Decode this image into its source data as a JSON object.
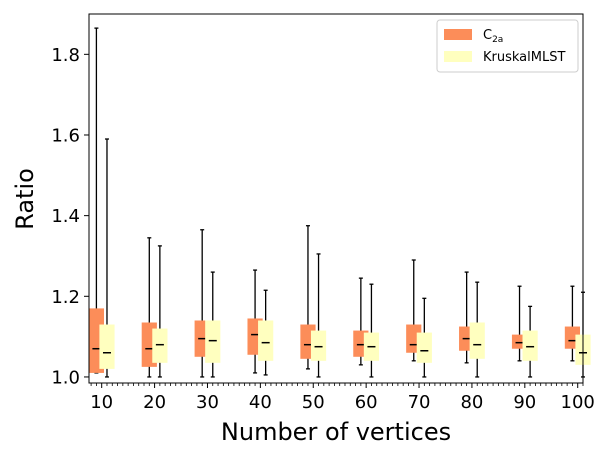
{
  "chart_data": {
    "type": "boxplot",
    "title": "",
    "xlabel": "Number of vertices",
    "ylabel": "Ratio",
    "ylim": [
      0.985,
      1.9
    ],
    "yticks": [
      1.0,
      1.2,
      1.4,
      1.6,
      1.8
    ],
    "ytick_labels": [
      "1.0",
      "1.2",
      "1.4",
      "1.6",
      "1.8"
    ],
    "xlim": [
      7.6,
      101
    ],
    "minor_xticks_step": 1,
    "categories": [
      "10",
      "20",
      "30",
      "40",
      "50",
      "60",
      "70",
      "80",
      "90",
      "100"
    ],
    "x": [
      10,
      20,
      30,
      40,
      50,
      60,
      70,
      80,
      90,
      100
    ],
    "legend": {
      "position": "top-right"
    },
    "series": [
      {
        "name": "C2a",
        "name_main": "C",
        "name_sub": "2a",
        "color": "#fc8d59",
        "offset": -1,
        "boxes": [
          {
            "min": 1.01,
            "q1": 1.01,
            "median": 1.07,
            "q3": 1.17,
            "max": 1.865
          },
          {
            "min": 1.0,
            "q1": 1.025,
            "median": 1.07,
            "q3": 1.135,
            "max": 1.345
          },
          {
            "min": 1.0,
            "q1": 1.05,
            "median": 1.095,
            "q3": 1.14,
            "max": 1.365
          },
          {
            "min": 1.01,
            "q1": 1.055,
            "median": 1.105,
            "q3": 1.145,
            "max": 1.265
          },
          {
            "min": 1.02,
            "q1": 1.045,
            "median": 1.08,
            "q3": 1.13,
            "max": 1.375
          },
          {
            "min": 1.03,
            "q1": 1.05,
            "median": 1.08,
            "q3": 1.115,
            "max": 1.245
          },
          {
            "min": 1.04,
            "q1": 1.06,
            "median": 1.08,
            "q3": 1.13,
            "max": 1.29
          },
          {
            "min": 1.035,
            "q1": 1.065,
            "median": 1.095,
            "q3": 1.125,
            "max": 1.26
          },
          {
            "min": 1.04,
            "q1": 1.07,
            "median": 1.085,
            "q3": 1.105,
            "max": 1.225
          },
          {
            "min": 1.04,
            "q1": 1.07,
            "median": 1.09,
            "q3": 1.125,
            "max": 1.225
          }
        ]
      },
      {
        "name": "KruskalMLST",
        "color": "#ffffbf",
        "offset": 1,
        "boxes": [
          {
            "min": 1.0,
            "q1": 1.02,
            "median": 1.06,
            "q3": 1.13,
            "max": 1.59
          },
          {
            "min": 1.0,
            "q1": 1.035,
            "median": 1.08,
            "q3": 1.12,
            "max": 1.325
          },
          {
            "min": 1.0,
            "q1": 1.035,
            "median": 1.09,
            "q3": 1.14,
            "max": 1.26
          },
          {
            "min": 1.005,
            "q1": 1.04,
            "median": 1.085,
            "q3": 1.14,
            "max": 1.215
          },
          {
            "min": 1.0,
            "q1": 1.04,
            "median": 1.075,
            "q3": 1.115,
            "max": 1.305
          },
          {
            "min": 1.0,
            "q1": 1.04,
            "median": 1.075,
            "q3": 1.11,
            "max": 1.23
          },
          {
            "min": 1.0,
            "q1": 1.035,
            "median": 1.065,
            "q3": 1.11,
            "max": 1.195
          },
          {
            "min": 1.0,
            "q1": 1.045,
            "median": 1.08,
            "q3": 1.135,
            "max": 1.235
          },
          {
            "min": 1.0,
            "q1": 1.04,
            "median": 1.075,
            "q3": 1.115,
            "max": 1.175
          },
          {
            "min": 1.0,
            "q1": 1.03,
            "median": 1.06,
            "q3": 1.105,
            "max": 1.21
          }
        ]
      }
    ]
  }
}
